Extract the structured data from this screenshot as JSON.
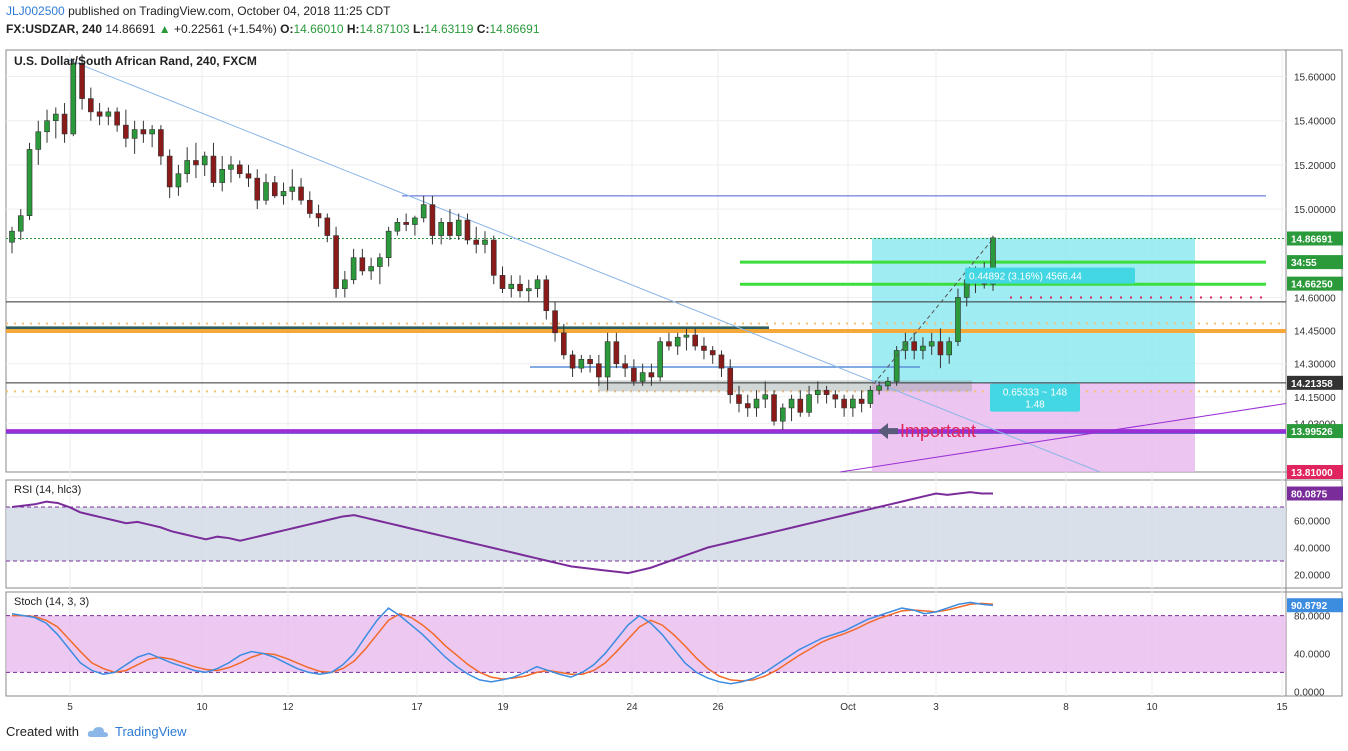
{
  "header": {
    "user": "JLJ002500",
    "published": "published on TradingView.com, October 04, 2018 11:25 CDT",
    "symbol": "FX:USDZAR, 240",
    "last": "14.86691",
    "change": "+0.22561 (+1.54%)",
    "open_label": "O:",
    "open": "14.66010",
    "high_label": "H:",
    "high": "14.87103",
    "low_label": "L:",
    "low": "14.63119",
    "close_label": "C:",
    "close": "14.86691"
  },
  "footer": {
    "created_with": "Created with",
    "brand": "TradingView"
  },
  "colors": {
    "up": "#2a9a3a",
    "down": "#8b1a1a",
    "accent": "#2e7bd6",
    "rsi": "#7a2c9a",
    "stoch_k": "#3c8ce0",
    "stoch_d": "#f26a2a"
  },
  "chart_data": {
    "type": "candlestick",
    "title": "U.S. Dollar/South African Rand, 240, FXCM",
    "x_ticks": [
      "5",
      "10",
      "12",
      "17",
      "19",
      "24",
      "26",
      "Oct",
      "3",
      "8",
      "10",
      "15"
    ],
    "y_ticks": [
      "15.60000",
      "15.40000",
      "15.20000",
      "15.00000",
      "14.60000",
      "14.45000",
      "14.30000",
      "14.15000",
      "14.03000"
    ],
    "ylim": [
      13.81,
      15.72
    ],
    "price_labels": [
      {
        "text": "14.86691",
        "value": 14.86691,
        "color": "#2a9a3a"
      },
      {
        "text": "34:55",
        "value": 14.76,
        "color": "#2a9a3a"
      },
      {
        "text": "14.66250",
        "value": 14.6625,
        "color": "#2a9a3a"
      },
      {
        "text": "14.21358",
        "value": 14.21358,
        "color": "#333333"
      },
      {
        "text": "13.99526",
        "value": 13.99526,
        "color": "#2a9a3a"
      },
      {
        "text": "13.81000",
        "value": 13.81,
        "color": "#e0245e"
      }
    ],
    "horizontal_lines": [
      {
        "value": 15.06,
        "color": "#4a5fd0"
      },
      {
        "value": 14.58,
        "color": "#333333"
      },
      {
        "value": 14.21358,
        "color": "#333333"
      },
      {
        "value": 14.86691,
        "color": "#2a9a3a"
      }
    ],
    "candles_ohlc": [
      [
        14.85,
        14.92,
        14.8,
        14.9
      ],
      [
        14.9,
        15.0,
        14.86,
        14.97
      ],
      [
        14.97,
        15.3,
        14.95,
        15.27
      ],
      [
        15.27,
        15.4,
        15.2,
        15.35
      ],
      [
        15.35,
        15.45,
        15.3,
        15.4
      ],
      [
        15.4,
        15.46,
        15.32,
        15.43
      ],
      [
        15.43,
        15.48,
        15.3,
        15.34
      ],
      [
        15.34,
        15.68,
        15.33,
        15.66
      ],
      [
        15.66,
        15.7,
        15.45,
        15.5
      ],
      [
        15.5,
        15.55,
        15.4,
        15.44
      ],
      [
        15.44,
        15.48,
        15.38,
        15.42
      ],
      [
        15.42,
        15.46,
        15.38,
        15.44
      ],
      [
        15.44,
        15.46,
        15.35,
        15.38
      ],
      [
        15.38,
        15.45,
        15.28,
        15.32
      ],
      [
        15.32,
        15.4,
        15.25,
        15.36
      ],
      [
        15.36,
        15.4,
        15.3,
        15.34
      ],
      [
        15.34,
        15.38,
        15.28,
        15.36
      ],
      [
        15.36,
        15.38,
        15.2,
        15.24
      ],
      [
        15.24,
        15.27,
        15.05,
        15.1
      ],
      [
        15.1,
        15.2,
        15.06,
        15.16
      ],
      [
        15.16,
        15.28,
        15.12,
        15.22
      ],
      [
        15.22,
        15.3,
        15.14,
        15.2
      ],
      [
        15.2,
        15.26,
        15.15,
        15.24
      ],
      [
        15.24,
        15.3,
        15.1,
        15.12
      ],
      [
        15.12,
        15.24,
        15.08,
        15.18
      ],
      [
        15.18,
        15.24,
        15.12,
        15.2
      ],
      [
        15.2,
        15.22,
        15.14,
        15.16
      ],
      [
        15.16,
        15.2,
        15.1,
        15.14
      ],
      [
        15.14,
        15.18,
        15.0,
        15.04
      ],
      [
        15.04,
        15.16,
        15.02,
        15.12
      ],
      [
        15.12,
        15.15,
        15.05,
        15.06
      ],
      [
        15.06,
        15.12,
        15.02,
        15.08
      ],
      [
        15.08,
        15.18,
        15.04,
        15.1
      ],
      [
        15.1,
        15.14,
        15.02,
        15.04
      ],
      [
        15.04,
        15.08,
        14.96,
        14.98
      ],
      [
        14.98,
        15.02,
        14.92,
        14.96
      ],
      [
        14.96,
        14.98,
        14.85,
        14.88
      ],
      [
        14.88,
        14.92,
        14.6,
        14.64
      ],
      [
        14.64,
        14.72,
        14.6,
        14.68
      ],
      [
        14.68,
        14.82,
        14.66,
        14.78
      ],
      [
        14.78,
        14.82,
        14.7,
        14.72
      ],
      [
        14.72,
        14.78,
        14.68,
        14.74
      ],
      [
        14.74,
        14.8,
        14.66,
        14.78
      ],
      [
        14.78,
        14.92,
        14.74,
        14.9
      ],
      [
        14.9,
        14.96,
        14.88,
        14.94
      ],
      [
        14.94,
        14.98,
        14.9,
        14.93
      ],
      [
        14.93,
        14.97,
        14.88,
        14.96
      ],
      [
        14.96,
        15.06,
        14.94,
        15.02
      ],
      [
        15.02,
        15.06,
        14.84,
        14.88
      ],
      [
        14.88,
        14.96,
        14.84,
        14.94
      ],
      [
        14.94,
        15.0,
        14.86,
        14.88
      ],
      [
        14.88,
        14.98,
        14.86,
        14.95
      ],
      [
        14.95,
        14.98,
        14.84,
        14.86
      ],
      [
        14.86,
        14.92,
        14.8,
        14.84
      ],
      [
        14.84,
        14.9,
        14.8,
        14.86
      ],
      [
        14.86,
        14.88,
        14.66,
        14.7
      ],
      [
        14.7,
        14.74,
        14.62,
        14.64
      ],
      [
        14.64,
        14.7,
        14.6,
        14.66
      ],
      [
        14.66,
        14.7,
        14.6,
        14.63
      ],
      [
        14.63,
        14.68,
        14.58,
        14.64
      ],
      [
        14.64,
        14.7,
        14.6,
        14.68
      ],
      [
        14.68,
        14.7,
        14.5,
        14.54
      ],
      [
        14.54,
        14.58,
        14.4,
        14.44
      ],
      [
        14.44,
        14.48,
        14.32,
        14.34
      ],
      [
        14.34,
        14.36,
        14.24,
        14.28
      ],
      [
        14.28,
        14.34,
        14.26,
        14.32
      ],
      [
        14.32,
        14.34,
        14.26,
        14.3
      ],
      [
        14.3,
        14.34,
        14.2,
        14.24
      ],
      [
        14.24,
        14.44,
        14.18,
        14.4
      ],
      [
        14.4,
        14.44,
        14.28,
        14.3
      ],
      [
        14.3,
        14.34,
        14.24,
        14.28
      ],
      [
        14.28,
        14.32,
        14.2,
        14.22
      ],
      [
        14.22,
        14.3,
        14.2,
        14.26
      ],
      [
        14.26,
        14.3,
        14.2,
        14.24
      ],
      [
        14.24,
        14.42,
        14.22,
        14.4
      ],
      [
        14.4,
        14.44,
        14.36,
        14.38
      ],
      [
        14.38,
        14.44,
        14.34,
        14.42
      ],
      [
        14.42,
        14.46,
        14.36,
        14.43
      ],
      [
        14.43,
        14.46,
        14.36,
        14.38
      ],
      [
        14.38,
        14.42,
        14.32,
        14.36
      ],
      [
        14.36,
        14.38,
        14.3,
        14.34
      ],
      [
        14.34,
        14.36,
        14.24,
        14.28
      ],
      [
        14.28,
        14.32,
        14.12,
        14.16
      ],
      [
        14.16,
        14.2,
        14.08,
        14.12
      ],
      [
        14.12,
        14.16,
        14.06,
        14.1
      ],
      [
        14.1,
        14.18,
        14.06,
        14.14
      ],
      [
        14.14,
        14.22,
        14.1,
        14.16
      ],
      [
        14.16,
        14.18,
        14.02,
        14.04
      ],
      [
        14.04,
        14.12,
        14.0,
        14.1
      ],
      [
        14.1,
        14.16,
        14.04,
        14.14
      ],
      [
        14.14,
        14.18,
        14.06,
        14.08
      ],
      [
        14.08,
        14.2,
        14.06,
        14.16
      ],
      [
        14.16,
        14.22,
        14.12,
        14.18
      ],
      [
        14.18,
        14.2,
        14.12,
        14.16
      ],
      [
        14.16,
        14.18,
        14.1,
        14.14
      ],
      [
        14.14,
        14.16,
        14.06,
        14.1
      ],
      [
        14.1,
        14.16,
        14.06,
        14.14
      ],
      [
        14.14,
        14.18,
        14.08,
        14.12
      ],
      [
        14.12,
        14.2,
        14.1,
        14.18
      ],
      [
        14.18,
        14.22,
        14.16,
        14.2
      ],
      [
        14.2,
        14.24,
        14.18,
        14.22
      ],
      [
        14.22,
        14.38,
        14.2,
        14.36
      ],
      [
        14.36,
        14.44,
        14.32,
        14.4
      ],
      [
        14.4,
        14.44,
        14.32,
        14.36
      ],
      [
        14.36,
        14.42,
        14.32,
        14.38
      ],
      [
        14.38,
        14.44,
        14.34,
        14.4
      ],
      [
        14.4,
        14.46,
        14.28,
        14.34
      ],
      [
        14.34,
        14.42,
        14.3,
        14.4
      ],
      [
        14.4,
        14.64,
        14.38,
        14.6
      ],
      [
        14.6,
        14.72,
        14.56,
        14.68
      ],
      [
        14.68,
        14.74,
        14.62,
        14.7
      ],
      [
        14.7,
        14.76,
        14.64,
        14.66
      ],
      [
        14.66,
        14.88,
        14.63,
        14.87
      ]
    ],
    "annotations": [
      {
        "text": "0.44892 (3.16%) 4566.44"
      },
      {
        "text": "0.65333 ~ 148"
      },
      {
        "text": "1.48"
      },
      {
        "text": "Important"
      }
    ],
    "rsi": {
      "title": "RSI (14, hlc3)",
      "last_label": "80.0875",
      "y_ticks": [
        "60.0000",
        "40.0000",
        "20.0000"
      ],
      "ylim": [
        10,
        90
      ],
      "bands": [
        70,
        30
      ],
      "values": [
        70,
        71,
        72,
        74,
        73,
        70,
        66,
        64,
        62,
        60,
        58,
        59,
        57,
        55,
        52,
        50,
        48,
        46,
        48,
        47,
        45,
        47,
        49,
        51,
        53,
        55,
        57,
        59,
        61,
        63,
        64,
        62,
        60,
        58,
        56,
        54,
        52,
        50,
        48,
        46,
        44,
        42,
        40,
        38,
        36,
        34,
        32,
        30,
        28,
        26,
        25,
        24,
        23,
        22,
        21,
        23,
        25,
        28,
        31,
        34,
        37,
        40,
        42,
        44,
        46,
        48,
        50,
        52,
        54,
        56,
        58,
        60,
        62,
        64,
        66,
        68,
        70,
        72,
        74,
        76,
        78,
        80,
        79,
        80,
        81,
        80,
        80
      ]
    },
    "stoch": {
      "title": "Stoch (14, 3, 3)",
      "last_label": "90.8792",
      "y_ticks": [
        "80.0000",
        "40.0000",
        "0.0000"
      ],
      "ylim": [
        -5,
        105
      ],
      "bands": [
        80,
        20
      ],
      "k": [
        82,
        80,
        78,
        72,
        60,
        45,
        30,
        22,
        18,
        20,
        28,
        36,
        40,
        35,
        30,
        26,
        22,
        20,
        24,
        30,
        38,
        42,
        40,
        36,
        30,
        24,
        20,
        18,
        20,
        28,
        40,
        58,
        75,
        88,
        80,
        70,
        60,
        48,
        36,
        26,
        18,
        12,
        10,
        12,
        15,
        20,
        26,
        22,
        18,
        15,
        20,
        28,
        40,
        55,
        70,
        80,
        72,
        60,
        45,
        30,
        20,
        14,
        10,
        8,
        10,
        14,
        20,
        28,
        36,
        44,
        50,
        56,
        60,
        64,
        70,
        76,
        80,
        84,
        88,
        86,
        82,
        84,
        88,
        92,
        94,
        92,
        90.9
      ],
      "d": [
        80,
        80,
        79,
        75,
        68,
        55,
        42,
        30,
        24,
        20,
        22,
        28,
        34,
        36,
        34,
        30,
        26,
        23,
        22,
        25,
        30,
        36,
        40,
        39,
        35,
        30,
        25,
        21,
        20,
        24,
        32,
        45,
        60,
        75,
        82,
        78,
        70,
        60,
        48,
        38,
        28,
        20,
        15,
        13,
        14,
        16,
        20,
        22,
        20,
        18,
        18,
        22,
        30,
        42,
        55,
        68,
        75,
        70,
        60,
        48,
        35,
        24,
        16,
        12,
        11,
        12,
        16,
        22,
        30,
        38,
        45,
        52,
        57,
        61,
        66,
        72,
        77,
        81,
        85,
        86,
        85,
        84,
        86,
        89,
        92,
        93,
        92
      ]
    }
  }
}
